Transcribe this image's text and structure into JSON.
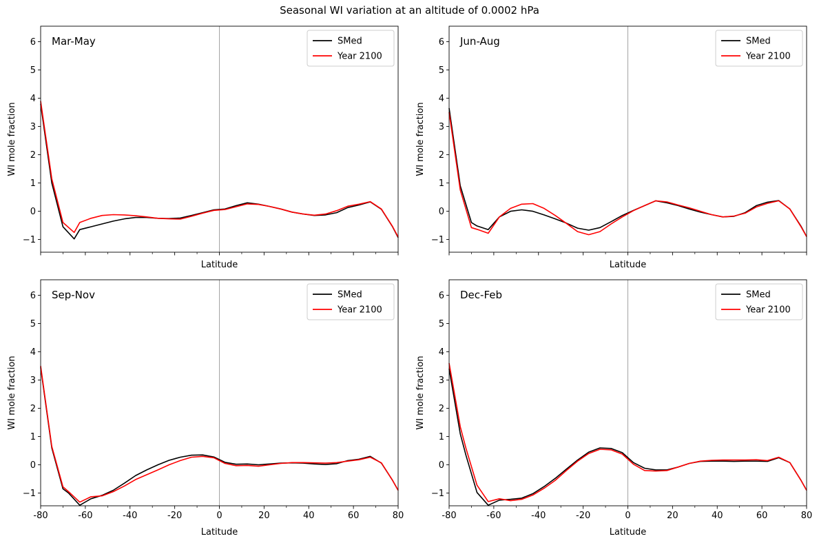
{
  "figure": {
    "title": "Seasonal WI variation at an altitude of 0.0002 hPa"
  },
  "colors": {
    "smed": "#000000",
    "year2100": "#ff0000",
    "zero_line": "#999999"
  },
  "chart_data": [
    {
      "type": "line",
      "panel_label": "Mar-May",
      "xlabel": "Latitude",
      "ylabel": "WI mole fraction",
      "xlim": [
        -80,
        80
      ],
      "ylim": [
        -1.45,
        6.55
      ],
      "yticks": [
        -1,
        0,
        1,
        2,
        3,
        4,
        5,
        6
      ],
      "xticks": [
        -80,
        -60,
        -40,
        -20,
        0,
        20,
        40,
        60,
        80
      ],
      "show_x_ticklabels": false,
      "legend_position": "top-right",
      "series": [
        {
          "name": "SMed",
          "color_key": "smed",
          "x": [
            -80,
            -75,
            -70,
            -65,
            -62.5,
            -57.5,
            -52.5,
            -47.5,
            -42.5,
            -37.5,
            -32.5,
            -27.5,
            -22.5,
            -17.5,
            -12.5,
            -7.5,
            -2.5,
            2.5,
            7.5,
            12.5,
            17.5,
            22.5,
            27.5,
            32.5,
            37.5,
            42.5,
            47.5,
            52.5,
            57.5,
            62.5,
            67.5,
            72.5,
            77.5,
            80
          ],
          "y": [
            3.8,
            1.0,
            -0.55,
            -0.98,
            -0.65,
            -0.55,
            -0.45,
            -0.35,
            -0.27,
            -0.22,
            -0.22,
            -0.25,
            -0.26,
            -0.24,
            -0.15,
            -0.05,
            0.05,
            0.08,
            0.2,
            0.3,
            0.25,
            0.17,
            0.08,
            -0.03,
            -0.1,
            -0.15,
            -0.13,
            -0.05,
            0.13,
            0.22,
            0.33,
            0.07,
            -0.55,
            -0.93
          ]
        },
        {
          "name": "Year 2100",
          "color_key": "year2100",
          "x": [
            -80,
            -75,
            -70,
            -65,
            -62.5,
            -57.5,
            -52.5,
            -47.5,
            -42.5,
            -37.5,
            -32.5,
            -27.5,
            -22.5,
            -17.5,
            -12.5,
            -7.5,
            -2.5,
            2.5,
            7.5,
            12.5,
            17.5,
            22.5,
            27.5,
            32.5,
            37.5,
            42.5,
            47.5,
            52.5,
            57.5,
            62.5,
            67.5,
            72.5,
            77.5,
            80
          ],
          "y": [
            3.9,
            1.15,
            -0.4,
            -0.75,
            -0.4,
            -0.25,
            -0.15,
            -0.12,
            -0.13,
            -0.16,
            -0.2,
            -0.25,
            -0.27,
            -0.28,
            -0.18,
            -0.07,
            0.03,
            0.06,
            0.16,
            0.26,
            0.24,
            0.17,
            0.08,
            -0.03,
            -0.1,
            -0.14,
            -0.1,
            0.02,
            0.18,
            0.25,
            0.34,
            0.08,
            -0.54,
            -0.91
          ]
        }
      ]
    },
    {
      "type": "line",
      "panel_label": "Jun-Aug",
      "xlabel": "Latitude",
      "ylabel": "WI mole fraction",
      "xlim": [
        -80,
        80
      ],
      "ylim": [
        -1.45,
        6.55
      ],
      "yticks": [
        -1,
        0,
        1,
        2,
        3,
        4,
        5,
        6
      ],
      "xticks": [
        -80,
        -60,
        -40,
        -20,
        0,
        20,
        40,
        60,
        80
      ],
      "show_x_ticklabels": false,
      "legend_position": "top-right",
      "series": [
        {
          "name": "SMed",
          "color_key": "smed",
          "x": [
            -80,
            -75,
            -70,
            -67.5,
            -62.5,
            -57.5,
            -52.5,
            -47.5,
            -42.5,
            -37.5,
            -32.5,
            -27.5,
            -22.5,
            -17.5,
            -12.5,
            -7.5,
            -2.5,
            2.5,
            7.5,
            12.5,
            17.5,
            22.5,
            27.5,
            32.5,
            37.5,
            42.5,
            47.5,
            52.5,
            57.5,
            62.5,
            67.5,
            72.5,
            77.5,
            80
          ],
          "y": [
            3.65,
            0.9,
            -0.4,
            -0.52,
            -0.65,
            -0.2,
            0.0,
            0.05,
            0.0,
            -0.13,
            -0.27,
            -0.42,
            -0.6,
            -0.67,
            -0.58,
            -0.37,
            -0.15,
            0.03,
            0.2,
            0.37,
            0.3,
            0.2,
            0.08,
            -0.03,
            -0.12,
            -0.2,
            -0.18,
            -0.05,
            0.2,
            0.32,
            0.38,
            0.08,
            -0.53,
            -0.9
          ]
        },
        {
          "name": "Year 2100",
          "color_key": "year2100",
          "x": [
            -80,
            -75,
            -70,
            -67.5,
            -62.5,
            -57.5,
            -52.5,
            -47.5,
            -42.5,
            -37.5,
            -32.5,
            -27.5,
            -22.5,
            -17.5,
            -12.5,
            -7.5,
            -2.5,
            2.5,
            7.5,
            12.5,
            17.5,
            22.5,
            27.5,
            32.5,
            37.5,
            42.5,
            47.5,
            52.5,
            57.5,
            62.5,
            67.5,
            72.5,
            77.5,
            80
          ],
          "y": [
            3.5,
            0.75,
            -0.58,
            -0.64,
            -0.78,
            -0.2,
            0.1,
            0.25,
            0.27,
            0.1,
            -0.15,
            -0.43,
            -0.72,
            -0.83,
            -0.72,
            -0.45,
            -0.2,
            0.02,
            0.2,
            0.37,
            0.33,
            0.22,
            0.12,
            0.0,
            -0.12,
            -0.2,
            -0.17,
            -0.07,
            0.15,
            0.28,
            0.37,
            0.08,
            -0.55,
            -0.9
          ]
        }
      ]
    },
    {
      "type": "line",
      "panel_label": "Sep-Nov",
      "xlabel": "Latitude",
      "ylabel": "WI mole fraction",
      "xlim": [
        -80,
        80
      ],
      "ylim": [
        -1.45,
        6.55
      ],
      "yticks": [
        -1,
        0,
        1,
        2,
        3,
        4,
        5,
        6
      ],
      "xticks": [
        -80,
        -60,
        -40,
        -20,
        0,
        20,
        40,
        60,
        80
      ],
      "show_x_ticklabels": true,
      "legend_position": "top-right",
      "series": [
        {
          "name": "SMed",
          "color_key": "smed",
          "x": [
            -80,
            -75,
            -70,
            -67.5,
            -62.5,
            -57.5,
            -52.5,
            -47.5,
            -42.5,
            -37.5,
            -32.5,
            -27.5,
            -22.5,
            -17.5,
            -12.5,
            -7.5,
            -2.5,
            2.5,
            7.5,
            12.5,
            17.5,
            22.5,
            27.5,
            32.5,
            37.5,
            42.5,
            47.5,
            52.5,
            57.5,
            62.5,
            67.5,
            72.5,
            77.5,
            80
          ],
          "y": [
            3.45,
            0.6,
            -0.85,
            -1.0,
            -1.43,
            -1.2,
            -1.08,
            -0.9,
            -0.65,
            -0.38,
            -0.18,
            0.0,
            0.16,
            0.27,
            0.34,
            0.35,
            0.28,
            0.09,
            0.02,
            0.03,
            0.0,
            0.03,
            0.06,
            0.07,
            0.06,
            0.03,
            0.01,
            0.04,
            0.15,
            0.2,
            0.3,
            0.06,
            -0.55,
            -0.9
          ]
        },
        {
          "name": "Year 2100",
          "color_key": "year2100",
          "x": [
            -80,
            -75,
            -70,
            -67.5,
            -62.5,
            -57.5,
            -52.5,
            -47.5,
            -42.5,
            -37.5,
            -32.5,
            -27.5,
            -22.5,
            -17.5,
            -12.5,
            -7.5,
            -2.5,
            2.5,
            7.5,
            12.5,
            17.5,
            22.5,
            27.5,
            32.5,
            37.5,
            42.5,
            47.5,
            52.5,
            57.5,
            62.5,
            67.5,
            72.5,
            77.5,
            80
          ],
          "y": [
            3.5,
            0.65,
            -0.78,
            -0.95,
            -1.32,
            -1.13,
            -1.1,
            -0.95,
            -0.75,
            -0.52,
            -0.35,
            -0.18,
            0.0,
            0.15,
            0.27,
            0.3,
            0.25,
            0.05,
            -0.03,
            -0.02,
            -0.05,
            0.0,
            0.05,
            0.08,
            0.08,
            0.07,
            0.06,
            0.08,
            0.13,
            0.18,
            0.27,
            0.07,
            -0.55,
            -0.9
          ]
        }
      ]
    },
    {
      "type": "line",
      "panel_label": "Dec-Feb",
      "xlabel": "Latitude",
      "ylabel": "WI mole fraction",
      "xlim": [
        -80,
        80
      ],
      "ylim": [
        -1.45,
        6.55
      ],
      "yticks": [
        -1,
        0,
        1,
        2,
        3,
        4,
        5,
        6
      ],
      "xticks": [
        -80,
        -60,
        -40,
        -20,
        0,
        20,
        40,
        60,
        80
      ],
      "show_x_ticklabels": true,
      "legend_position": "top-right",
      "series": [
        {
          "name": "SMed",
          "color_key": "smed",
          "x": [
            -80,
            -75,
            -72.5,
            -67.5,
            -62.5,
            -57.5,
            -52.5,
            -47.5,
            -42.5,
            -37.5,
            -32.5,
            -27.5,
            -22.5,
            -17.5,
            -12.5,
            -7.5,
            -2.5,
            2.5,
            7.5,
            12.5,
            17.5,
            22.5,
            27.5,
            32.5,
            37.5,
            42.5,
            47.5,
            52.5,
            57.5,
            62.5,
            67.5,
            72.5,
            77.5,
            80
          ],
          "y": [
            3.4,
            1.1,
            0.35,
            -0.98,
            -1.43,
            -1.25,
            -1.22,
            -1.18,
            -1.02,
            -0.77,
            -0.48,
            -0.15,
            0.17,
            0.45,
            0.6,
            0.58,
            0.43,
            0.08,
            -0.12,
            -0.18,
            -0.18,
            -0.08,
            0.05,
            0.12,
            0.13,
            0.13,
            0.12,
            0.13,
            0.13,
            0.12,
            0.25,
            0.08,
            -0.55,
            -0.9
          ]
        },
        {
          "name": "Year 2100",
          "color_key": "year2100",
          "x": [
            -80,
            -75,
            -72.5,
            -67.5,
            -62.5,
            -57.5,
            -52.5,
            -47.5,
            -42.5,
            -37.5,
            -32.5,
            -27.5,
            -22.5,
            -17.5,
            -12.5,
            -7.5,
            -2.5,
            2.5,
            7.5,
            12.5,
            17.5,
            22.5,
            27.5,
            32.5,
            37.5,
            42.5,
            47.5,
            52.5,
            57.5,
            62.5,
            67.5,
            72.5,
            77.5,
            80
          ],
          "y": [
            3.6,
            1.35,
            0.6,
            -0.72,
            -1.3,
            -1.2,
            -1.27,
            -1.22,
            -1.07,
            -0.83,
            -0.55,
            -0.2,
            0.13,
            0.4,
            0.55,
            0.53,
            0.38,
            0.02,
            -0.2,
            -0.22,
            -0.2,
            -0.08,
            0.05,
            0.13,
            0.16,
            0.17,
            0.17,
            0.17,
            0.18,
            0.15,
            0.27,
            0.08,
            -0.55,
            -0.9
          ]
        }
      ]
    }
  ]
}
